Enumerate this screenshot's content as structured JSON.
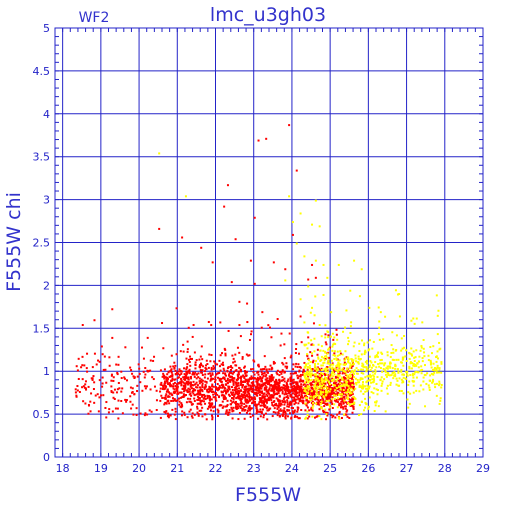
{
  "chart_data": {
    "type": "scatter",
    "title": "lmc_u3gh03",
    "panel_label": "WF2",
    "xlabel": "F555W",
    "ylabel": "F555W  chi",
    "xlim": [
      17.8,
      29
    ],
    "ylim": [
      0,
      5
    ],
    "x_ticks": [
      "18",
      "19",
      "20",
      "21",
      "22",
      "23",
      "24",
      "25",
      "26",
      "27",
      "28",
      "29"
    ],
    "y_ticks": [
      "0",
      "0.5",
      "1",
      "1.5",
      "2",
      "2.5",
      "3",
      "3.5",
      "4",
      "4.5",
      "5"
    ],
    "grid": true,
    "colors": {
      "axis": "#2323c8",
      "title": "#3333cc",
      "red": "#ff0000",
      "yellow": "#ffff00"
    },
    "series": [
      {
        "color": "#ff0000",
        "clouds": [
          {
            "x_range": [
              18.3,
              20.6
            ],
            "y_mean": 0.85,
            "y_sd": 0.22,
            "count": 180
          },
          {
            "x_range": [
              20.6,
              22.5
            ],
            "y_mean": 0.8,
            "y_sd": 0.17,
            "count": 700
          },
          {
            "x_range": [
              22.5,
              25.6
            ],
            "y_mean": 0.78,
            "y_sd": 0.15,
            "count": 1500
          }
        ],
        "points": [
          [
            20.5,
            2.67
          ],
          [
            21.1,
            2.57
          ],
          [
            21.6,
            2.45
          ],
          [
            21.9,
            2.28
          ],
          [
            22.1,
            1.58
          ],
          [
            22.3,
            3.18
          ],
          [
            22.2,
            2.93
          ],
          [
            22.4,
            2.05
          ],
          [
            22.6,
            1.82
          ],
          [
            23.1,
            3.7
          ],
          [
            23.3,
            3.72
          ],
          [
            23.0,
            2.8
          ],
          [
            22.9,
            2.3
          ],
          [
            23.0,
            2.03
          ],
          [
            23.2,
            1.7
          ],
          [
            23.5,
            2.28
          ],
          [
            23.8,
            2.2
          ],
          [
            23.9,
            3.88
          ],
          [
            24.1,
            3.35
          ],
          [
            24.0,
            2.6
          ],
          [
            24.5,
            2.25
          ],
          [
            24.4,
            2.08
          ],
          [
            24.6,
            2.1
          ],
          [
            23.6,
            1.62
          ],
          [
            22.8,
            1.8
          ],
          [
            21.8,
            1.05
          ],
          [
            22.6,
            1.55
          ],
          [
            23.7,
            1.45
          ],
          [
            24.2,
            1.65
          ],
          [
            23.4,
            1.52
          ],
          [
            22.5,
            2.55
          ],
          [
            18.5,
            1.55
          ],
          [
            19.0,
            1.3
          ],
          [
            20.2,
            1.4
          ],
          [
            21.4,
            1.55
          ]
        ]
      },
      {
        "color": "#ffff00",
        "clouds": [
          {
            "x_range": [
              24.3,
              26.2
            ],
            "y_mean": 0.95,
            "y_sd": 0.22,
            "count": 550
          },
          {
            "x_range": [
              26.2,
              27.9
            ],
            "y_mean": 1.02,
            "y_sd": 0.18,
            "count": 280
          }
        ],
        "points": [
          [
            20.5,
            3.55
          ],
          [
            21.2,
            3.05
          ],
          [
            23.9,
            3.05
          ],
          [
            24.2,
            2.85
          ],
          [
            24.0,
            2.75
          ],
          [
            24.5,
            2.72
          ],
          [
            24.7,
            2.7
          ],
          [
            24.6,
            3.0
          ],
          [
            24.1,
            2.5
          ],
          [
            24.3,
            2.35
          ],
          [
            24.6,
            2.3
          ],
          [
            24.8,
            2.25
          ],
          [
            24.4,
            2.0
          ],
          [
            24.8,
            1.9
          ],
          [
            24.9,
            2.1
          ],
          [
            25.2,
            2.25
          ],
          [
            24.2,
            1.85
          ],
          [
            24.5,
            1.75
          ],
          [
            25.0,
            1.7
          ],
          [
            25.4,
            1.72
          ],
          [
            25.5,
            1.95
          ],
          [
            25.8,
            2.2
          ],
          [
            23.8,
            2.07
          ],
          [
            24.3,
            1.58
          ],
          [
            26.0,
            1.75
          ],
          [
            26.3,
            1.7
          ],
          [
            26.8,
            1.65
          ],
          [
            27.1,
            1.6
          ],
          [
            25.6,
            2.3
          ],
          [
            24.7,
            1.55
          ]
        ]
      }
    ]
  }
}
